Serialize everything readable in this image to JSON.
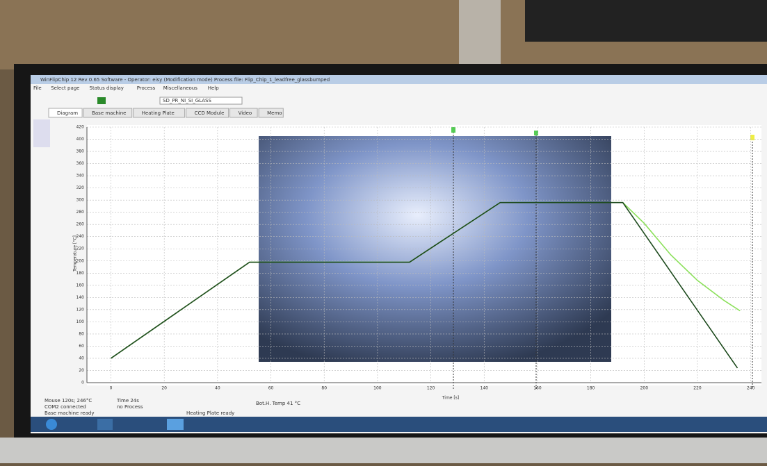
{
  "window": {
    "title": "WinFlipChip 12 Rev 0.65 Software - Operator: eisy (Modification mode)     Process file: Flip_Chip_1_leadfree_glassbumped",
    "menu": [
      "File",
      "Select page",
      "Status display",
      "Process",
      "Miscellaneous",
      "Help"
    ],
    "process_select": "SD_PR_NI_SI_GLASS",
    "tabs": [
      "Diagram",
      "Base machine",
      "Heating Plate",
      "CCD Module",
      "Video",
      "Memo"
    ],
    "status": [
      "Mouse 120s; 246°C",
      "Time 24s",
      "Bot.H. Temp 41 °C",
      "COM2 connected",
      "no Process",
      "Base machine ready",
      "Heating Plate ready"
    ]
  },
  "chart_data": {
    "type": "line",
    "y_label": "Temperature [°C]",
    "x_label": "Time [s]",
    "xlim": [
      -9,
      244
    ],
    "ylim": [
      0,
      420
    ],
    "xticks": [
      0,
      20,
      40,
      60,
      80,
      100,
      120,
      140,
      160,
      180,
      200,
      220,
      240
    ],
    "yticks": [
      0,
      20,
      40,
      60,
      80,
      100,
      120,
      140,
      160,
      180,
      200,
      220,
      240,
      260,
      280,
      300,
      320,
      340,
      360,
      380,
      400,
      420
    ],
    "grid": true,
    "series": [
      {
        "color": "#8be05a",
        "x": [
          0,
          52,
          112,
          146,
          192,
          200,
          210,
          220,
          230,
          236
        ],
        "values": [
          40,
          198,
          198,
          296,
          296,
          262,
          210,
          168,
          135,
          118
        ]
      },
      {
        "color": "#1d4a1d",
        "x": [
          0,
          52,
          112,
          146,
          192,
          235
        ],
        "values": [
          40,
          198,
          198,
          296,
          296,
          24
        ]
      }
    ]
  }
}
